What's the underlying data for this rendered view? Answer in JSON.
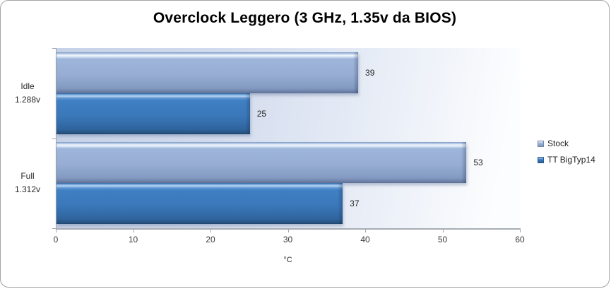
{
  "title": "Overclock Leggero (3 GHz, 1.35v da BIOS)",
  "chart_data": {
    "type": "bar",
    "orientation": "horizontal",
    "title": "Overclock Leggero (3 GHz, 1.35v da BIOS)",
    "categories": [
      {
        "name": "Idle",
        "voltage": "1.288v"
      },
      {
        "name": "Full",
        "voltage": "1.312v"
      }
    ],
    "series": [
      {
        "name": "Stock",
        "color": "#95b3d7",
        "values": [
          39,
          53
        ]
      },
      {
        "name": "TT BigTyp14",
        "color": "#3c7ab8",
        "values": [
          25,
          37
        ]
      }
    ],
    "xlabel": "°C",
    "xlim": [
      0,
      60
    ],
    "xticks": [
      0,
      10,
      20,
      30,
      40,
      50,
      60
    ],
    "grid": false,
    "legend_position": "right",
    "data_labels": true,
    "plot_background": {
      "left": "#c6d2e8",
      "right": "#fcfdfe"
    }
  }
}
